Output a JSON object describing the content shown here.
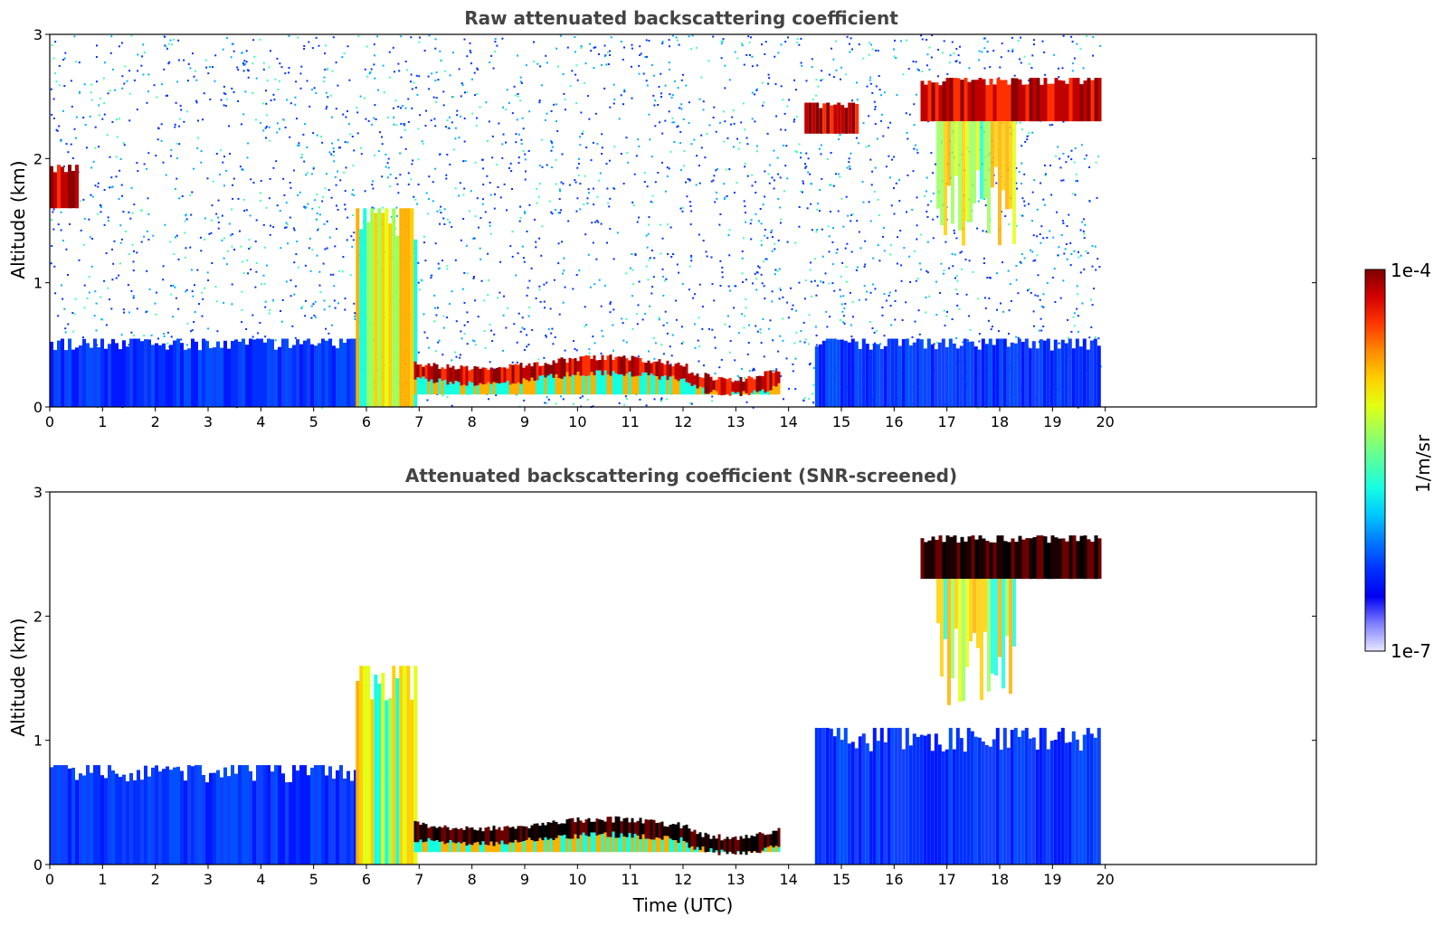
{
  "colorbar": {
    "max_label": "1e-4",
    "min_label": "1e-7",
    "unit_label": "1/m/sr",
    "colormap": [
      "#7f0000",
      "#d40000",
      "#ff3800",
      "#ff8a00",
      "#ffd000",
      "#e3ff13",
      "#9bff5c",
      "#56ffa0",
      "#16ffe1",
      "#00c8ff",
      "#0078ff",
      "#0030ff",
      "#0000f1",
      "#8080ff",
      "#e8e8ff"
    ]
  },
  "chart_data": [
    {
      "type": "heatmap",
      "id": "raw",
      "title": "Raw attenuated backscattering coefficient",
      "xlabel": "",
      "ylabel": "Altitude (km)",
      "xlim": [
        0,
        24
      ],
      "ylim": [
        0,
        3
      ],
      "xticks": [
        0,
        1,
        2,
        3,
        4,
        5,
        6,
        7,
        8,
        9,
        10,
        11,
        12,
        13,
        14,
        15,
        16,
        17,
        18,
        19,
        20
      ],
      "yticks": [
        0,
        1,
        2,
        3
      ],
      "data_extent_x": [
        0,
        19.9
      ],
      "color_scale": "log",
      "clim": [
        "1e-7",
        "1e-4"
      ],
      "layers": [
        {
          "kind": "noise-fill",
          "x": [
            0,
            19.9
          ],
          "y": [
            0,
            3
          ]
        },
        {
          "kind": "boundary-layer",
          "x": [
            0,
            5.8
          ],
          "y": [
            0,
            0.55
          ],
          "level": "low"
        },
        {
          "kind": "boundary-layer",
          "x": [
            14.5,
            19.9
          ],
          "y": [
            0,
            0.55
          ],
          "level": "low"
        },
        {
          "kind": "aerosol-column",
          "x": [
            5.8,
            6.9
          ],
          "y": [
            0,
            1.6
          ],
          "level": "mid"
        },
        {
          "kind": "cloud-base-band",
          "x": [
            6.9,
            13.8
          ],
          "y": [
            0.1,
            0.45
          ],
          "level": "high"
        },
        {
          "kind": "cloud-layer",
          "x": [
            16.5,
            19.9
          ],
          "y": [
            2.3,
            2.65
          ],
          "level": "high"
        },
        {
          "kind": "cloud-layer",
          "x": [
            0,
            0.5
          ],
          "y": [
            1.6,
            1.95
          ],
          "level": "high"
        },
        {
          "kind": "cloud-layer",
          "x": [
            14.3,
            15.3
          ],
          "y": [
            2.2,
            2.45
          ],
          "level": "high"
        },
        {
          "kind": "precipitation-streaks",
          "x": [
            16.8,
            18.3
          ],
          "y": [
            1.2,
            2.3
          ],
          "level": "mid"
        }
      ]
    },
    {
      "type": "heatmap",
      "id": "snr",
      "title": "Attenuated backscattering coefficient (SNR-screened)",
      "xlabel": "Time (UTC)",
      "ylabel": "Altitude (km)",
      "xlim": [
        0,
        24
      ],
      "ylim": [
        0,
        3
      ],
      "xticks": [
        0,
        1,
        2,
        3,
        4,
        5,
        6,
        7,
        8,
        9,
        10,
        11,
        12,
        13,
        14,
        15,
        16,
        17,
        18,
        19,
        20
      ],
      "yticks": [
        0,
        1,
        2,
        3
      ],
      "data_extent_x": [
        0,
        19.9
      ],
      "color_scale": "log",
      "clim": [
        "1e-7",
        "1e-4"
      ],
      "layers": [
        {
          "kind": "boundary-layer",
          "x": [
            0,
            5.8
          ],
          "y": [
            0,
            0.8
          ],
          "level": "low"
        },
        {
          "kind": "boundary-layer",
          "x": [
            14.5,
            19.9
          ],
          "y": [
            0,
            1.1
          ],
          "level": "low"
        },
        {
          "kind": "aerosol-column",
          "x": [
            5.8,
            6.9
          ],
          "y": [
            0,
            1.6
          ],
          "level": "mid"
        },
        {
          "kind": "cloud-base-band",
          "x": [
            6.9,
            13.8
          ],
          "y": [
            0.1,
            0.4
          ],
          "level": "saturated"
        },
        {
          "kind": "cloud-layer",
          "x": [
            16.5,
            19.9
          ],
          "y": [
            2.3,
            2.65
          ],
          "level": "saturated"
        },
        {
          "kind": "precipitation-streaks",
          "x": [
            16.8,
            18.3
          ],
          "y": [
            1.2,
            2.3
          ],
          "level": "mid"
        }
      ]
    }
  ]
}
